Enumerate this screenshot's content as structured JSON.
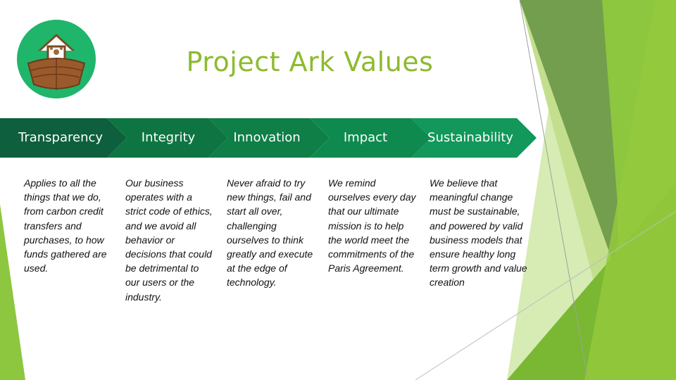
{
  "slide": {
    "title": "Project Ark Values",
    "logo": {
      "icon": "ark-boat-paw-icon",
      "accent": "#1fb56b"
    }
  },
  "values": [
    {
      "label": "Transparency",
      "description": "Applies to all the things that we do, from carbon credit transfers and purchases, to how funds gathered are used."
    },
    {
      "label": "Integrity",
      "description": "Our business operates with a strict code of ethics, and we avoid all behavior or decisions that could be detrimental to our users or the industry."
    },
    {
      "label": "Innovation",
      "description": "Never afraid to try new things, fail and start all over, challenging ourselves to think greatly and execute at the edge of technology."
    },
    {
      "label": "Impact",
      "description": "We remind ourselves every day that our ultimate mission is to help the world meet the commitments of the Paris Agreement."
    },
    {
      "label": "Sustainability",
      "description": "We believe that meaningful change must be sustainable, and powered by valid business models that ensure healthy long term growth and value creation"
    }
  ],
  "colors": {
    "title": "#8dbb2e",
    "chevron_dark": "#0d5f3d",
    "chevron_mid": "#0f7a45",
    "chevron_light": "#11985a",
    "decor_green": "#8dc63f"
  }
}
